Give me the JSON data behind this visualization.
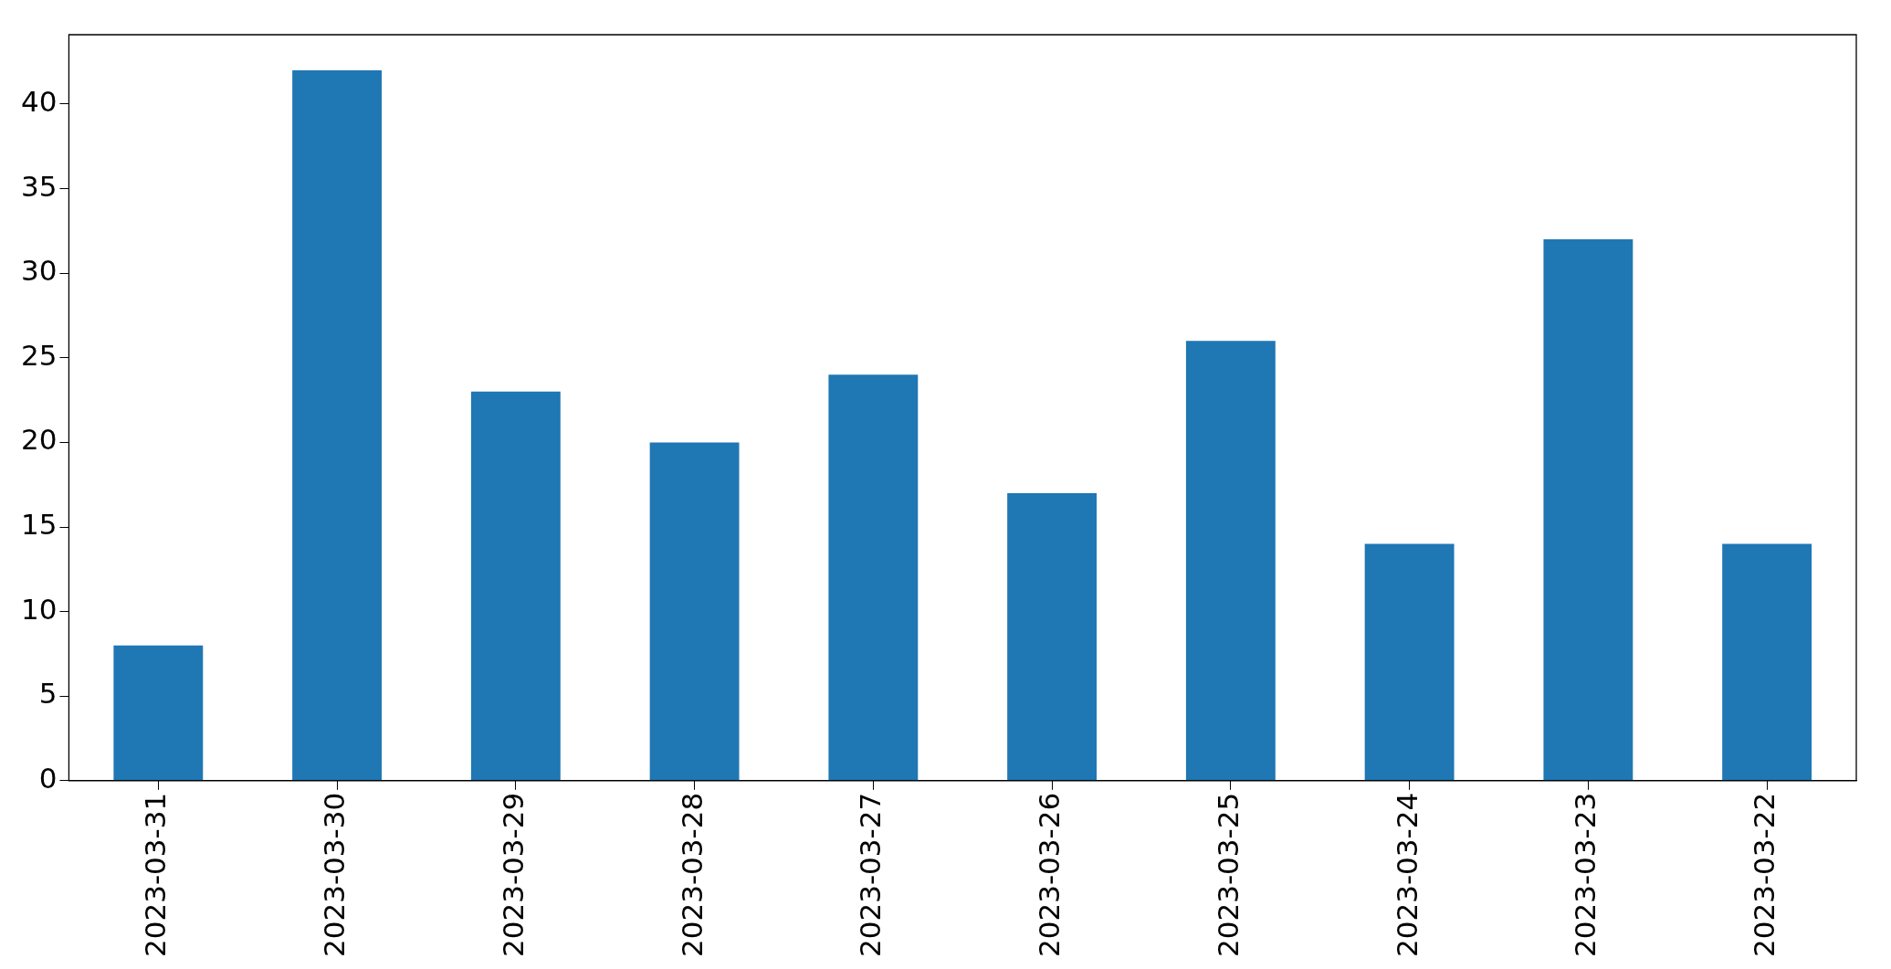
{
  "chart_data": {
    "type": "bar",
    "categories": [
      "2023-03-31",
      "2023-03-30",
      "2023-03-29",
      "2023-03-28",
      "2023-03-27",
      "2023-03-26",
      "2023-03-25",
      "2023-03-24",
      "2023-03-23",
      "2023-03-22"
    ],
    "values": [
      8,
      42,
      23,
      20,
      24,
      17,
      26,
      14,
      32,
      14
    ],
    "color": "#1f77b4",
    "ylim": [
      0,
      44.1
    ],
    "yticks": [
      0,
      5,
      10,
      15,
      20,
      25,
      30,
      35,
      40
    ],
    "grid": false,
    "legend": false
  }
}
